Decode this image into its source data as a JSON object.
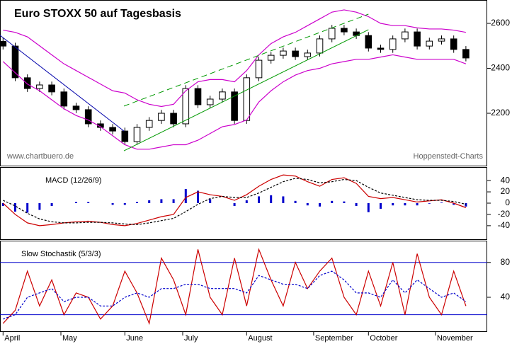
{
  "chart_data": [
    {
      "type": "candlestick",
      "title": "Euro STOXX 50 auf Tagesbasis",
      "source": "www.chartbuero.de",
      "credit": "Hoppenstedt-Charts",
      "x": [
        1,
        5,
        9,
        13,
        17,
        21,
        25,
        29,
        33,
        37,
        41,
        45,
        49,
        53,
        57,
        61,
        65,
        69,
        73,
        77,
        81,
        85,
        89,
        93,
        97,
        101,
        105,
        109,
        113,
        117,
        121,
        125,
        129,
        133,
        137,
        141,
        145,
        149,
        153
      ],
      "open": [
        2520,
        2499,
        2358,
        2310,
        2326,
        2295,
        2232,
        2216,
        2153,
        2137,
        2121,
        2074,
        2137,
        2168,
        2200,
        2153,
        2310,
        2238,
        2263,
        2295,
        2168,
        2358,
        2436,
        2458,
        2477,
        2452,
        2468,
        2531,
        2578,
        2562,
        2546,
        2490,
        2484,
        2531,
        2562,
        2499,
        2521,
        2531,
        2484
      ],
      "high": [
        2535,
        2514,
        2373,
        2341,
        2341,
        2310,
        2247,
        2231,
        2168,
        2152,
        2136,
        2152,
        2183,
        2215,
        2215,
        2325,
        2325,
        2278,
        2310,
        2310,
        2373,
        2451,
        2473,
        2492,
        2492,
        2483,
        2546,
        2593,
        2593,
        2577,
        2561,
        2505,
        2546,
        2577,
        2577,
        2536,
        2546,
        2546,
        2499
      ],
      "low": [
        2484,
        2343,
        2295,
        2295,
        2280,
        2217,
        2201,
        2138,
        2122,
        2106,
        2059,
        2059,
        2122,
        2153,
        2138,
        2138,
        2223,
        2223,
        2248,
        2153,
        2153,
        2343,
        2421,
        2443,
        2437,
        2437,
        2453,
        2516,
        2547,
        2531,
        2475,
        2469,
        2469,
        2516,
        2484,
        2484,
        2506,
        2469,
        2431
      ],
      "close": [
        2499,
        2358,
        2310,
        2326,
        2295,
        2232,
        2216,
        2153,
        2137,
        2121,
        2074,
        2137,
        2168,
        2200,
        2153,
        2310,
        2238,
        2263,
        2295,
        2168,
        2358,
        2436,
        2458,
        2477,
        2452,
        2468,
        2531,
        2578,
        2562,
        2546,
        2490,
        2484,
        2531,
        2562,
        2499,
        2521,
        2531,
        2484,
        2446
      ],
      "series": [
        {
          "color": "#cc00cc",
          "values": [
            2570,
            2560,
            2540,
            2500,
            2460,
            2420,
            2390,
            2360,
            2330,
            2300,
            2290,
            2260,
            2240,
            2230,
            2240,
            2300,
            2340,
            2350,
            2350,
            2340,
            2390,
            2460,
            2510,
            2540,
            2560,
            2590,
            2620,
            2650,
            2660,
            2650,
            2630,
            2600,
            2590,
            2590,
            2580,
            2575,
            2575,
            2570,
            2560
          ]
        },
        {
          "color": "#cc00cc",
          "values": [
            2430,
            2380,
            2330,
            2300,
            2260,
            2220,
            2190,
            2170,
            2140,
            2100,
            2060,
            2040,
            2040,
            2050,
            2060,
            2060,
            2080,
            2110,
            2140,
            2150,
            2170,
            2250,
            2300,
            2340,
            2370,
            2390,
            2400,
            2420,
            2430,
            2440,
            2440,
            2450,
            2460,
            2450,
            2440,
            2440,
            2440,
            2440,
            2420
          ]
        }
      ],
      "trend_lines": [
        {
          "color": "#0000aa",
          "from": [
            0,
            2547
          ],
          "to": [
            40.7,
            2121
          ]
        },
        {
          "color": "#009900",
          "from": [
            40.7,
            2033
          ],
          "to": [
            121,
            2572
          ]
        },
        {
          "color": "#009900",
          "dash": true,
          "from": [
            40.7,
            2232
          ],
          "to": [
            121,
            2641
          ]
        }
      ],
      "xlim": [
        0,
        160
      ],
      "ylim": [
        1967,
        2704
      ],
      "yticks": [
        2200,
        2400,
        2600
      ]
    },
    {
      "type": "combo",
      "title": "MACD (12/26/9)",
      "x": [
        1,
        5,
        9,
        13,
        17,
        21,
        25,
        29,
        33,
        37,
        41,
        45,
        49,
        53,
        57,
        61,
        65,
        69,
        73,
        77,
        81,
        85,
        89,
        93,
        97,
        101,
        105,
        109,
        113,
        117,
        121,
        125,
        129,
        133,
        137,
        141,
        145,
        149,
        153
      ],
      "series": [
        {
          "style": "bar",
          "color": "#0000cc",
          "values": [
            -5,
            -15,
            -17,
            -12,
            -5,
            0,
            2,
            2,
            0,
            -3,
            -3,
            2,
            5,
            7,
            7,
            25,
            22,
            7,
            0,
            -5,
            5,
            12,
            14,
            12,
            4,
            -4,
            -6,
            4,
            3,
            -5,
            -16,
            -10,
            -4,
            -4,
            -4,
            -1,
            1,
            -3,
            -6
          ]
        },
        {
          "style": "line",
          "color": "#cc0000",
          "values": [
            0,
            -20,
            -35,
            -40,
            -38,
            -35,
            -33,
            -32,
            -34,
            -38,
            -40,
            -36,
            -30,
            -24,
            -20,
            10,
            20,
            15,
            12,
            5,
            15,
            30,
            42,
            50,
            48,
            38,
            30,
            42,
            45,
            35,
            12,
            8,
            10,
            6,
            2,
            4,
            6,
            0,
            -8
          ]
        },
        {
          "style": "line",
          "color": "#000000",
          "dash": true,
          "values": [
            5,
            -5,
            -18,
            -28,
            -33,
            -35,
            -35,
            -34,
            -34,
            -35,
            -37,
            -38,
            -35,
            -31,
            -27,
            -15,
            -2,
            8,
            12,
            10,
            10,
            18,
            28,
            38,
            44,
            42,
            36,
            38,
            42,
            40,
            28,
            18,
            14,
            10,
            6,
            5,
            5,
            3,
            -2
          ]
        }
      ],
      "xlim": [
        0,
        160
      ],
      "ylim": [
        -64,
        64
      ],
      "yticks": [
        40,
        20,
        0,
        -20,
        -40
      ]
    },
    {
      "type": "combo",
      "title": "Slow Stochastik (5/3/3)",
      "x": [
        1,
        5,
        9,
        13,
        17,
        21,
        25,
        29,
        33,
        37,
        41,
        45,
        49,
        53,
        57,
        61,
        65,
        69,
        73,
        77,
        81,
        85,
        89,
        93,
        97,
        101,
        105,
        109,
        113,
        117,
        121,
        125,
        129,
        133,
        137,
        141,
        145,
        149,
        153
      ],
      "series": [
        {
          "style": "line",
          "color": "#cc0000",
          "values": [
            10,
            25,
            70,
            30,
            60,
            20,
            45,
            40,
            15,
            30,
            70,
            45,
            10,
            85,
            60,
            20,
            95,
            40,
            20,
            85,
            30,
            95,
            60,
            30,
            80,
            50,
            70,
            85,
            40,
            20,
            70,
            30,
            80,
            20,
            90,
            40,
            20,
            70,
            30
          ]
        },
        {
          "style": "line",
          "color": "#0000cc",
          "dash": true,
          "values": [
            15,
            20,
            40,
            45,
            50,
            35,
            40,
            40,
            30,
            30,
            40,
            45,
            40,
            50,
            50,
            55,
            55,
            50,
            50,
            50,
            45,
            65,
            60,
            55,
            55,
            50,
            65,
            70,
            60,
            45,
            45,
            40,
            60,
            45,
            60,
            50,
            40,
            45,
            35
          ]
        }
      ],
      "levels": [
        80,
        20
      ],
      "level_color": "#0000cc",
      "xlim": [
        0,
        160
      ],
      "ylim": [
        1,
        105
      ],
      "yticks": [
        40,
        80
      ],
      "xticks": [
        {
          "value": 1,
          "label": "April"
        },
        {
          "value": 20,
          "label": "May"
        },
        {
          "value": 41,
          "label": "June"
        },
        {
          "value": 60,
          "label": "July"
        },
        {
          "value": 81,
          "label": "August"
        },
        {
          "value": 103,
          "label": "September"
        },
        {
          "value": 121,
          "label": "October"
        },
        {
          "value": 143,
          "label": "November"
        }
      ]
    }
  ]
}
